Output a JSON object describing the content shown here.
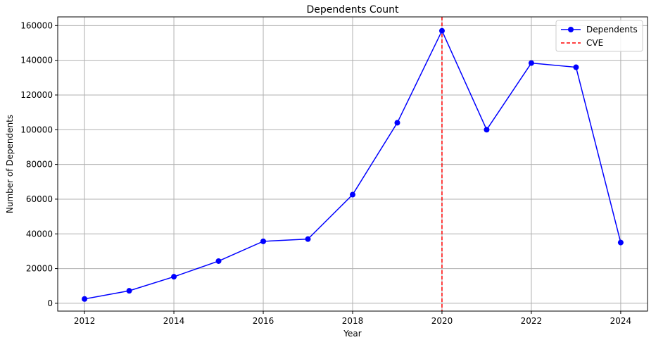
{
  "chart_data": {
    "type": "line",
    "title": "Dependents Count",
    "xlabel": "Year",
    "ylabel": "Number of Dependents",
    "x": [
      2012,
      2013,
      2014,
      2015,
      2016,
      2017,
      2018,
      2019,
      2020,
      2021,
      2022,
      2023,
      2024
    ],
    "series": [
      {
        "name": "Dependents",
        "color": "#0000ff",
        "marker": "circle",
        "values": [
          2500,
          7200,
          15300,
          24300,
          35700,
          37000,
          62600,
          104000,
          157000,
          100000,
          138400,
          136000,
          35000
        ]
      }
    ],
    "reference_lines": [
      {
        "name": "CVE",
        "axis": "x",
        "value": 2020,
        "color": "#ff0000",
        "style": "dashed"
      }
    ],
    "xlim": [
      2011.4,
      2024.6
    ],
    "ylim": [
      -4500,
      165000
    ],
    "xticks": [
      2012,
      2014,
      2016,
      2018,
      2020,
      2022,
      2024
    ],
    "yticks": [
      0,
      20000,
      40000,
      60000,
      80000,
      100000,
      120000,
      140000,
      160000
    ],
    "grid": true,
    "legend_position": "top-right"
  }
}
